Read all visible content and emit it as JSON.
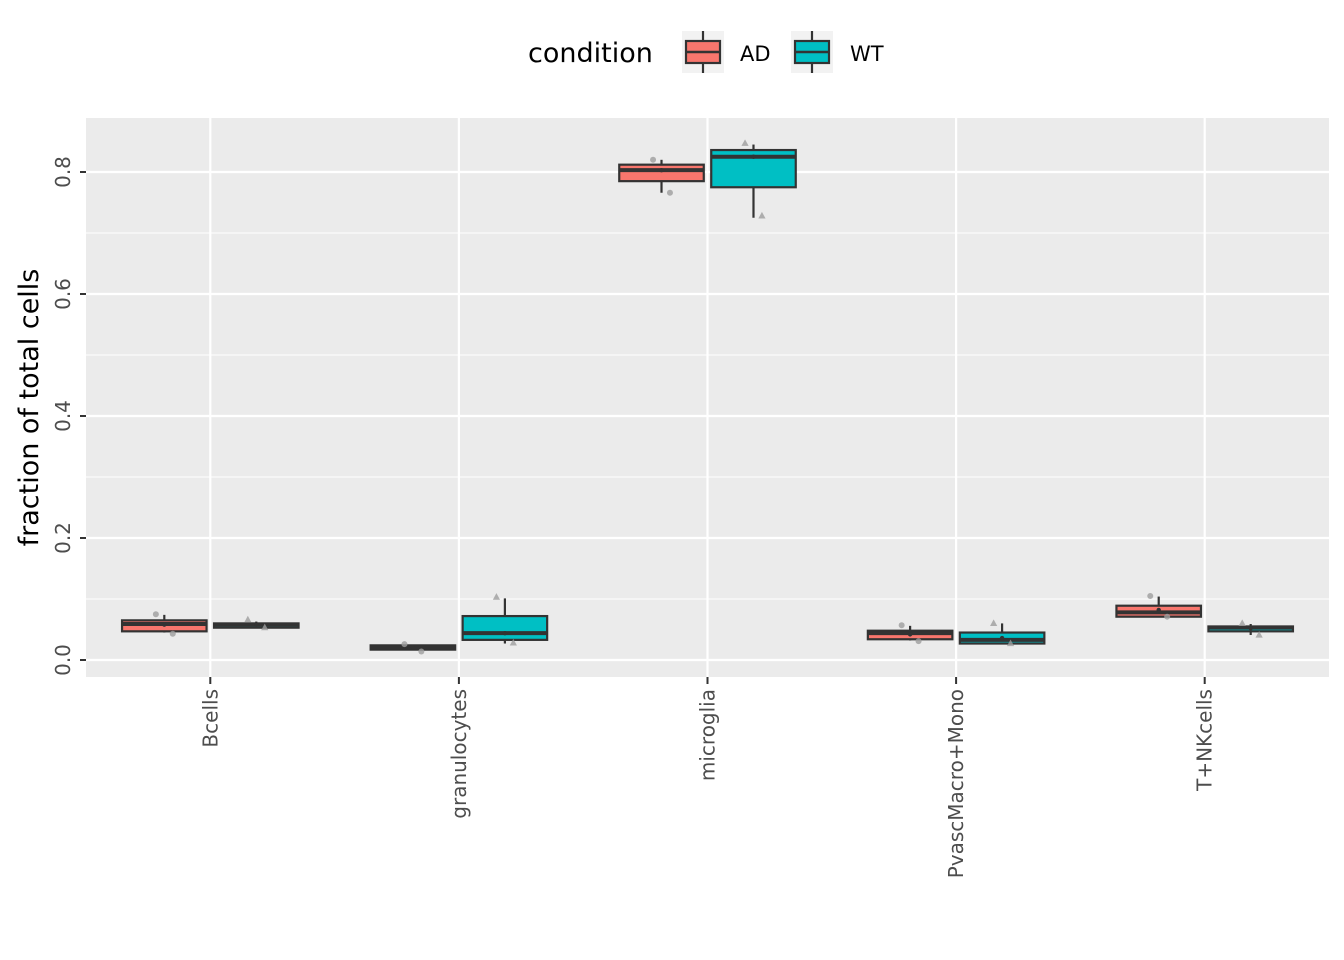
{
  "chart_data": {
    "type": "box",
    "title": "",
    "xlabel": "",
    "ylabel": "fraction of total cells",
    "ylim": [
      -0.028,
      0.886
    ],
    "y_ticks": [
      0.0,
      0.2,
      0.4,
      0.6,
      0.8
    ],
    "y_tick_labels": [
      "0.0",
      "0.2",
      "0.4",
      "0.6",
      "0.8"
    ],
    "categories": [
      "Bcells",
      "granulocytes",
      "microglia",
      "PvascMacro+Mono",
      "T+NKcells"
    ],
    "grid": true,
    "legend": {
      "title": "condition",
      "position": "top",
      "entries": [
        {
          "label": "AD",
          "color": "#F8766D"
        },
        {
          "label": "WT",
          "color": "#00BFC4"
        }
      ]
    },
    "series": [
      {
        "name": "AD",
        "color": "#F8766D",
        "boxes": [
          {
            "category": "Bcells",
            "whisker_low": 0.045,
            "q1": 0.047,
            "median": 0.059,
            "q3": 0.065,
            "whisker_high": 0.074,
            "mean": 0.058
          },
          {
            "category": "granulocytes",
            "whisker_low": 0.017,
            "q1": 0.017,
            "median": 0.021,
            "q3": 0.024,
            "whisker_high": 0.024,
            "mean": 0.021
          },
          {
            "category": "microglia",
            "whisker_low": 0.766,
            "q1": 0.785,
            "median": 0.803,
            "q3": 0.812,
            "whisker_high": 0.82,
            "mean": 0.803
          },
          {
            "category": "PvascMacro+Mono",
            "whisker_low": 0.032,
            "q1": 0.034,
            "median": 0.044,
            "q3": 0.048,
            "whisker_high": 0.056,
            "mean": 0.042
          },
          {
            "category": "T+NKcells",
            "whisker_low": 0.07,
            "q1": 0.071,
            "median": 0.078,
            "q3": 0.089,
            "whisker_high": 0.104,
            "mean": 0.082
          }
        ],
        "points": [
          {
            "category": "Bcells",
            "y": 0.075
          },
          {
            "category": "Bcells",
            "y": 0.043
          },
          {
            "category": "granulocytes",
            "y": 0.026
          },
          {
            "category": "granulocytes",
            "y": 0.014
          },
          {
            "category": "microglia",
            "y": 0.82
          },
          {
            "category": "microglia",
            "y": 0.766
          },
          {
            "category": "PvascMacro+Mono",
            "y": 0.057
          },
          {
            "category": "PvascMacro+Mono",
            "y": 0.031
          },
          {
            "category": "T+NKcells",
            "y": 0.105
          },
          {
            "category": "T+NKcells",
            "y": 0.071
          }
        ]
      },
      {
        "name": "WT",
        "color": "#00BFC4",
        "boxes": [
          {
            "category": "Bcells",
            "whisker_low": 0.053,
            "q1": 0.053,
            "median": 0.058,
            "q3": 0.06,
            "whisker_high": 0.063,
            "mean": 0.058
          },
          {
            "category": "granulocytes",
            "whisker_low": 0.027,
            "q1": 0.033,
            "median": 0.044,
            "q3": 0.072,
            "whisker_high": 0.101,
            "mean": 0.044
          },
          {
            "category": "microglia",
            "whisker_low": 0.725,
            "q1": 0.775,
            "median": 0.825,
            "q3": 0.836,
            "whisker_high": 0.845,
            "mean": 0.825
          },
          {
            "category": "PvascMacro+Mono",
            "whisker_low": 0.026,
            "q1": 0.027,
            "median": 0.033,
            "q3": 0.045,
            "whisker_high": 0.06,
            "mean": 0.036
          },
          {
            "category": "T+NKcells",
            "whisker_low": 0.041,
            "q1": 0.047,
            "median": 0.053,
            "q3": 0.055,
            "whisker_high": 0.059,
            "mean": 0.052
          }
        ],
        "points": [
          {
            "category": "Bcells",
            "y": 0.066
          },
          {
            "category": "Bcells",
            "y": 0.053
          },
          {
            "category": "granulocytes",
            "y": 0.103
          },
          {
            "category": "granulocytes",
            "y": 0.028
          },
          {
            "category": "microglia",
            "y": 0.847
          },
          {
            "category": "microglia",
            "y": 0.728
          },
          {
            "category": "PvascMacro+Mono",
            "y": 0.06
          },
          {
            "category": "PvascMacro+Mono",
            "y": 0.027
          },
          {
            "category": "T+NKcells",
            "y": 0.06
          },
          {
            "category": "T+NKcells",
            "y": 0.041
          }
        ]
      }
    ]
  }
}
